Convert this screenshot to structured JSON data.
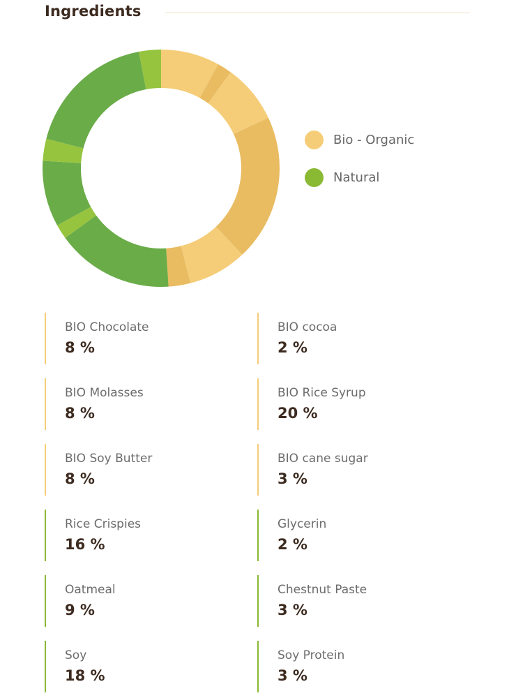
{
  "header": {
    "title": "Ingredients"
  },
  "legend": [
    {
      "label": "Bio - Organic",
      "color": "#f5cd78"
    },
    {
      "label": "Natural",
      "color": "#8ab934"
    }
  ],
  "colors": {
    "organic_light": "#f5cd78",
    "organic_dark": "#e9bc62",
    "natural_dark": "#6aac48",
    "natural_light": "#96c43e"
  },
  "chart_data": {
    "type": "pie",
    "categories": [
      "BIO Chocolate",
      "BIO cocoa",
      "BIO Molasses",
      "BIO Rice Syrup",
      "BIO Soy Butter",
      "BIO cane sugar",
      "Rice Crispies",
      "Glycerin",
      "Oatmeal",
      "Chestnut Paste",
      "Soy",
      "Soy Protein"
    ],
    "values": [
      8,
      2,
      8,
      20,
      8,
      3,
      16,
      2,
      9,
      3,
      18,
      3
    ],
    "groups": [
      "Bio - Organic",
      "Bio - Organic",
      "Bio - Organic",
      "Bio - Organic",
      "Bio - Organic",
      "Bio - Organic",
      "Natural",
      "Natural",
      "Natural",
      "Natural",
      "Natural",
      "Natural"
    ],
    "slice_colors": [
      "#f5cd78",
      "#e9bc62",
      "#f5cd78",
      "#e9bc62",
      "#f5cd78",
      "#e9bc62",
      "#6aac48",
      "#96c43e",
      "#6aac48",
      "#96c43e",
      "#6aac48",
      "#96c43e"
    ],
    "legend_position": "right",
    "donut": true
  },
  "ingredients": [
    {
      "name": "BIO Chocolate",
      "value": "8 %",
      "group": "organic"
    },
    {
      "name": "BIO cocoa",
      "value": "2 %",
      "group": "organic"
    },
    {
      "name": "BIO Molasses",
      "value": "8 %",
      "group": "organic"
    },
    {
      "name": "BIO Rice Syrup",
      "value": "20 %",
      "group": "organic"
    },
    {
      "name": "BIO Soy Butter",
      "value": "8 %",
      "group": "organic"
    },
    {
      "name": "BIO cane sugar",
      "value": "3 %",
      "group": "organic"
    },
    {
      "name": "Rice Crispies",
      "value": "16 %",
      "group": "natural"
    },
    {
      "name": "Glycerin",
      "value": "2 %",
      "group": "natural"
    },
    {
      "name": "Oatmeal",
      "value": "9 %",
      "group": "natural"
    },
    {
      "name": "Chestnut Paste",
      "value": "3 %",
      "group": "natural"
    },
    {
      "name": "Soy",
      "value": "18 %",
      "group": "natural"
    },
    {
      "name": "Soy Protein",
      "value": "3 %",
      "group": "natural"
    }
  ]
}
